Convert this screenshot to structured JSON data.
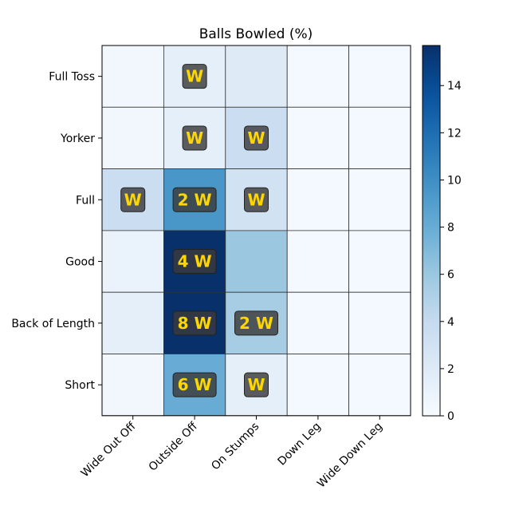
{
  "chart_data": {
    "type": "heatmap",
    "title": "Balls Bowled (%)",
    "xlabel": "",
    "ylabel": "",
    "x_categories": [
      "Wide Out Off",
      "Outside Off",
      "On Stumps",
      "Down Leg",
      "Wide Down Leg"
    ],
    "y_categories": [
      "Full Toss",
      "Yorker",
      "Full",
      "Good",
      "Back of Length",
      "Short"
    ],
    "values": [
      [
        0.5,
        1.5,
        2.0,
        0.3,
        0.3
      ],
      [
        0.5,
        1.5,
        3.5,
        0.3,
        0.3
      ],
      [
        3.5,
        9.5,
        3.0,
        0.3,
        0.3
      ],
      [
        1.0,
        15.7,
        6.0,
        0.3,
        0.3
      ],
      [
        1.5,
        15.7,
        5.5,
        0.3,
        0.3
      ],
      [
        0.5,
        8.0,
        1.5,
        0.3,
        0.3
      ]
    ],
    "annotations": [
      [
        "",
        "W",
        "",
        "",
        ""
      ],
      [
        "",
        "W",
        "W",
        "",
        ""
      ],
      [
        "W",
        "2 W",
        "W",
        "",
        ""
      ],
      [
        "",
        "4 W",
        "",
        "",
        ""
      ],
      [
        "",
        "8 W",
        "2 W",
        "",
        ""
      ],
      [
        "",
        "6 W",
        "W",
        "",
        ""
      ]
    ],
    "colormap": "Blues",
    "colorbar": {
      "min": 0,
      "max": 15.7,
      "ticks": [
        0,
        2,
        4,
        6,
        8,
        10,
        12,
        14
      ]
    },
    "grid": true,
    "legend": "colorbar-right",
    "colors": {
      "annotation_text": "#FFD700",
      "annotation_box": "#3a3a3a",
      "grid_line": "#333333"
    }
  }
}
